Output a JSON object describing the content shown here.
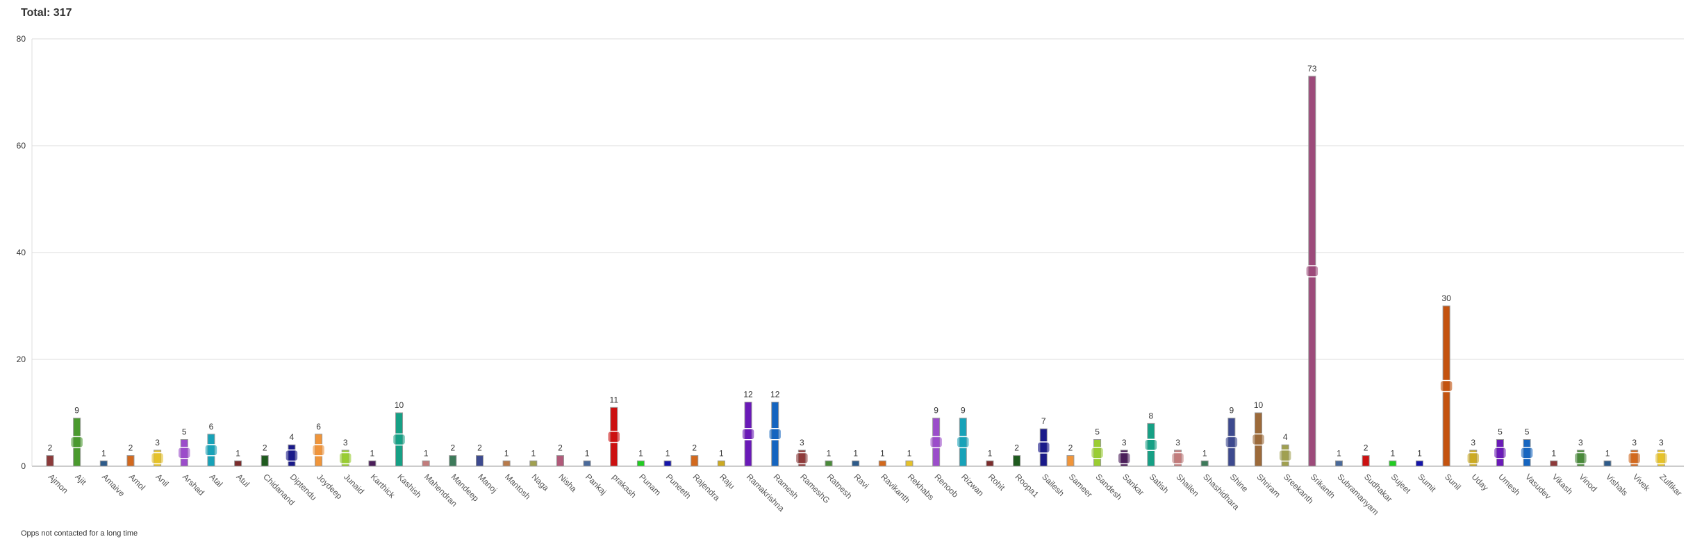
{
  "header": {
    "total_label": "Total: 317"
  },
  "footer": {
    "note": "Opps not contacted for a long time"
  },
  "chart_data": {
    "type": "bar",
    "ylim": [
      0,
      80
    ],
    "yticks": [
      0,
      20,
      40,
      60,
      80
    ],
    "grid": true,
    "legend": "none",
    "categories": [
      "Ajmon",
      "Ajit",
      "Amaive",
      "Amol",
      "Anil",
      "Arshad",
      "Atal",
      "Atul",
      "Chidanand",
      "Diptendu",
      "Joydeep",
      "Junaid",
      "Karthick",
      "Kashish",
      "Mahendran",
      "Mandeep",
      "Manoj",
      "Mantosh",
      "Naga",
      "Nisha",
      "Pankaj",
      "prakash",
      "Punam",
      "Puneeth",
      "Rajendra",
      "Raju",
      "Ramakrishna",
      "Ramesh",
      "RameshG",
      "Ratnesh",
      "Ravi",
      "Ravikanth",
      "Rekhabs",
      "Renoob",
      "Rizwan",
      "Rohit",
      "Roopa1",
      "Sailesh",
      "Sameer",
      "Sandesh",
      "Sankar",
      "Satish",
      "Shailen",
      "Shashidhara",
      "Shine",
      "Shriram",
      "Sreekanth",
      "Srikanth",
      "Subramanyam",
      "Sudhakar",
      "Sujeet",
      "Sumit",
      "Sunil",
      "Uday",
      "Umesh",
      "Vasudev",
      "Vikash",
      "Vinod",
      "Vishals",
      "Vivek",
      "Zulfikar"
    ],
    "values": [
      2,
      9,
      1,
      2,
      3,
      5,
      6,
      1,
      2,
      4,
      6,
      3,
      1,
      10,
      1,
      2,
      2,
      1,
      1,
      2,
      1,
      11,
      1,
      1,
      2,
      1,
      12,
      12,
      3,
      1,
      1,
      1,
      1,
      9,
      9,
      1,
      2,
      7,
      2,
      5,
      3,
      8,
      3,
      1,
      9,
      10,
      4,
      73,
      1,
      2,
      1,
      1,
      30,
      3,
      5,
      5,
      1,
      3,
      1,
      3,
      3
    ],
    "colors": [
      "#8b3a3a",
      "#4a9a2e",
      "#2e5b8a",
      "#d2691e",
      "#e6c229",
      "#9b4dca",
      "#17a2b8",
      "#7b2d2d",
      "#1e5a1e",
      "#1a1a8a",
      "#f0953a",
      "#9acd32",
      "#4b1e5a",
      "#16a085",
      "#c27c7c",
      "#3d7a5a",
      "#3d4a8f",
      "#b87a4a",
      "#a0a050",
      "#b05a7a",
      "#4a6a9a",
      "#cc1111",
      "#22cc22",
      "#1515aa",
      "#d2691e",
      "#ccaa22",
      "#6a1ab8",
      "#1565c0",
      "#8e3a3a",
      "#4a8a3a",
      "#2e5b8a",
      "#d2691e",
      "#e6c229",
      "#9b4dca",
      "#17a2b8",
      "#7b2d2d",
      "#1e5a1e",
      "#1a1a8a",
      "#f0953a",
      "#9acd32",
      "#4b1e5a",
      "#16a085",
      "#c27c7c",
      "#3d7a5a",
      "#3d4a8f",
      "#9c6a3a",
      "#a0a050",
      "#9c4a7a",
      "#4a6a9a",
      "#cc1111",
      "#22cc22",
      "#1515aa",
      "#c4530f",
      "#ccaa22",
      "#6a1ab8",
      "#1565c0",
      "#8e3a3a",
      "#4a8a3a",
      "#2e5b8a",
      "#d2691e",
      "#e6c229"
    ]
  }
}
